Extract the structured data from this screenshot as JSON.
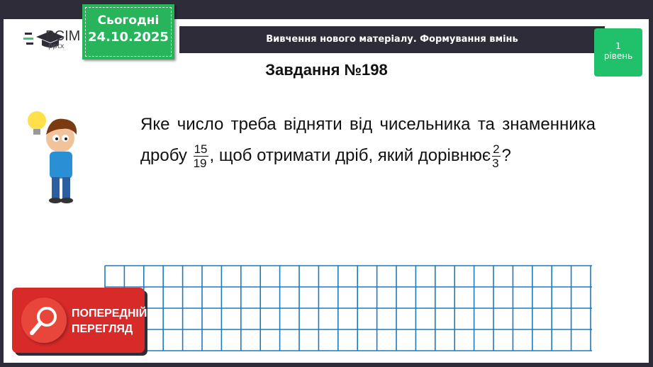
{
  "logo": {
    "brand": "ВСІМ",
    "sub": "pptx"
  },
  "date_box": {
    "label": "Сьогодні",
    "date": "24.10.2025"
  },
  "banner": {
    "text": "Вивчення нового матеріалу.  Формування вмінь"
  },
  "level_badge": {
    "number": "1",
    "label": "рівень"
  },
  "task": {
    "title": "Завдання №198",
    "text_part1": "Яке число треба відняти від чисельника та знаменника  дробу ",
    "fraction1": {
      "numerator": "15",
      "denominator": "19"
    },
    "text_part2": ", щоб отримати дріб, який дорівнює",
    "fraction2": {
      "numerator": "2",
      "denominator": "3"
    },
    "text_part3": "?"
  },
  "preview_button": {
    "line1": "ПОПЕРЕДНІЙ",
    "line2": "ПЕРЕГЛЯД",
    "icon": "magnifier-icon"
  },
  "colors": {
    "dark": "#2d2c38",
    "green": "#27b45a",
    "level_green": "#21c06a",
    "grid_blue": "#1f7ab8",
    "preview_red": "#d92a2a"
  }
}
